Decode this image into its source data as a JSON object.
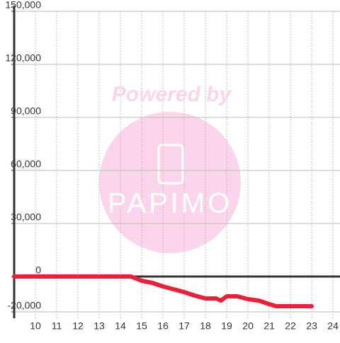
{
  "chart_data": {
    "type": "line",
    "watermark": [
      "Powered by",
      "PAPIMO"
    ],
    "x": [
      9,
      14.5,
      15,
      15.5,
      16,
      16.5,
      17,
      17.5,
      18,
      18.5,
      18.73,
      19,
      19.5,
      20,
      20.5,
      21,
      21.33,
      22,
      23
    ],
    "series": [
      {
        "color": "#e8203a",
        "values": [
          0,
          0,
          -2400,
          -3600,
          -5600,
          -7200,
          -8800,
          -10800,
          -12400,
          -12400,
          -13600,
          -11200,
          -11200,
          -12800,
          -13600,
          -15600,
          -16800,
          -16800,
          -16800
        ]
      }
    ],
    "xlim": [
      9,
      24.33
    ],
    "xticks": [
      10,
      11,
      12,
      13,
      14,
      15,
      16,
      17,
      18,
      19,
      20,
      21,
      22,
      23,
      24
    ],
    "ylim": [
      -20000,
      150000
    ],
    "yticks": [
      {
        "value": -20000,
        "label": "-20,000"
      },
      0,
      {
        "value": 30000,
        "label": "30,000"
      },
      {
        "value": 60000,
        "label": "60,000"
      },
      {
        "value": 90000,
        "label": "90,000"
      },
      {
        "value": 120000,
        "label": "120,000"
      },
      {
        "value": 150000,
        "label": "150,000"
      }
    ],
    "grid": true
  }
}
